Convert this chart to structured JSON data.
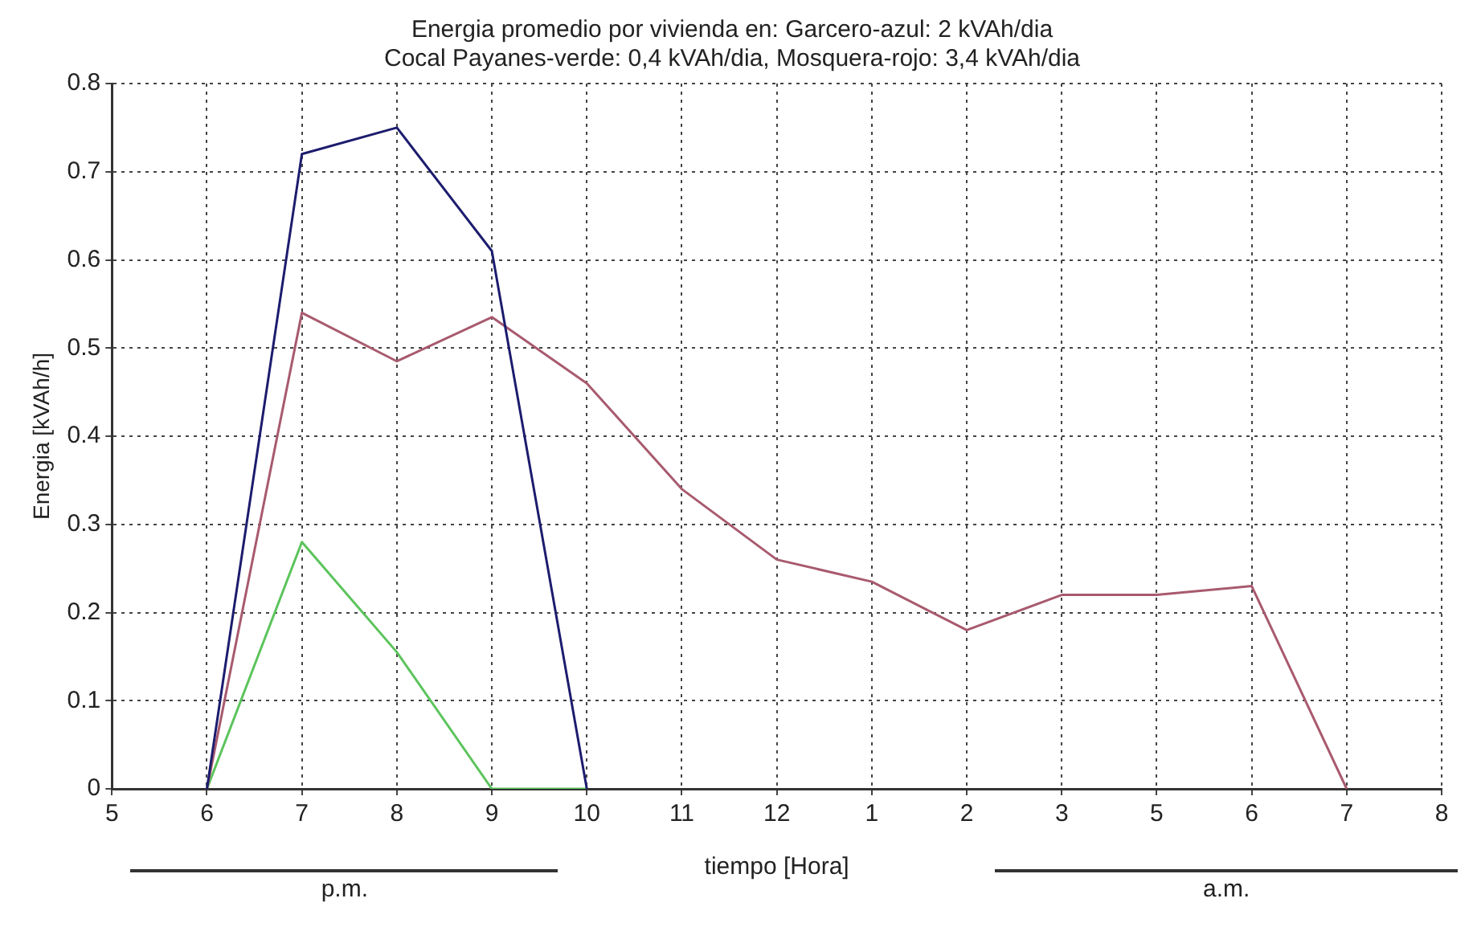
{
  "chart_data": {
    "type": "line",
    "title": "Energia promedio por vivienda en: Garcero-azul: 2 kVAh/dia\nCocal Payanes-verde: 0,4 kVAh/dia, Mosquera-rojo: 3,4 kVAh/dia",
    "xlabel": "tiempo [Hora]",
    "ylabel": "Energia [kVAh/h]",
    "categories": [
      "5",
      "6",
      "7",
      "8",
      "9",
      "10",
      "11",
      "12",
      "1",
      "2",
      "3",
      "5",
      "6",
      "7",
      "8"
    ],
    "series": [
      {
        "color": "#1c1c6e",
        "values": [
          null,
          0,
          0.72,
          0.75,
          0.61,
          0,
          null,
          null,
          null,
          null,
          null,
          null,
          null,
          null,
          null
        ]
      },
      {
        "color": "#a85a6e",
        "values": [
          null,
          0,
          0.54,
          0.485,
          0.535,
          0.46,
          0.34,
          0.26,
          0.235,
          0.18,
          0.22,
          0.22,
          0.23,
          0,
          null
        ]
      },
      {
        "color": "#5cc45c",
        "values": [
          null,
          0,
          0.28,
          0.155,
          0,
          0,
          null,
          null,
          null,
          null,
          null,
          null,
          null,
          null,
          null
        ]
      }
    ],
    "ylim": [
      0,
      0.8
    ],
    "yticks": [
      0,
      0.1,
      0.2,
      0.3,
      0.4,
      0.5,
      0.6,
      0.7,
      0.8
    ],
    "grid": true,
    "marker": "none",
    "line_style": "solid",
    "legend": false,
    "annotations": [
      "p.m.",
      "a.m."
    ]
  }
}
